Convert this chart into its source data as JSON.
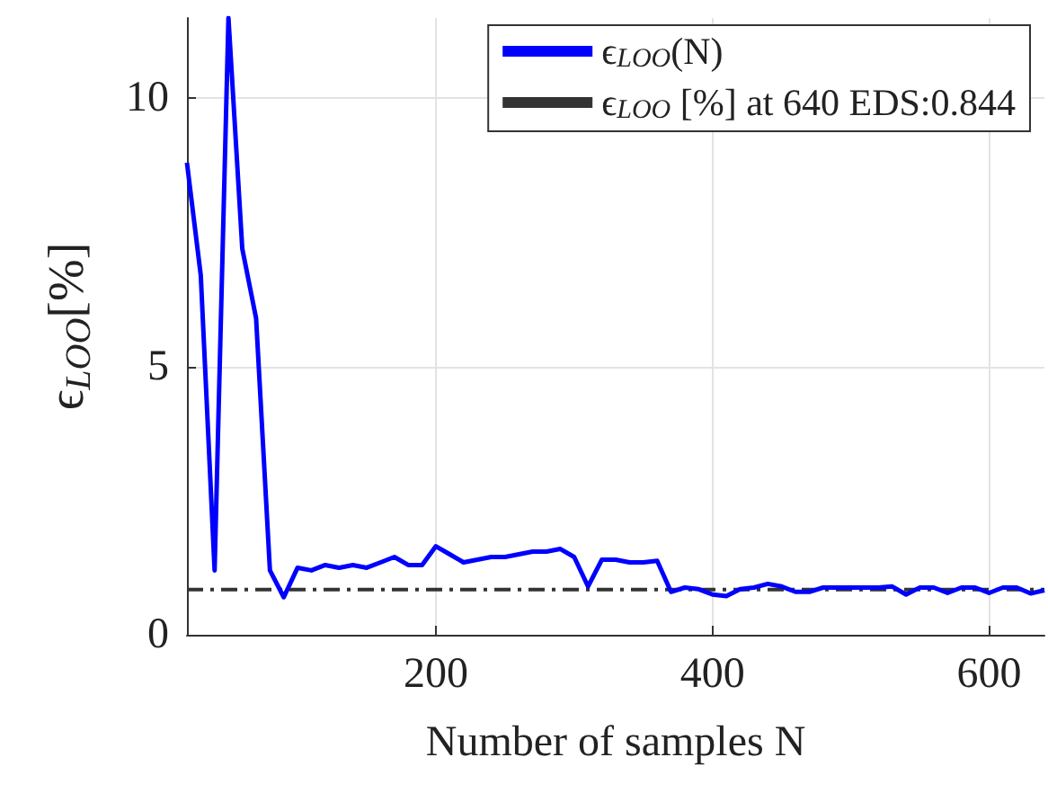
{
  "chart_data": {
    "type": "line",
    "xlabel": "Number of samples N",
    "ylabel": "ϵ$_{LOO}$[%]",
    "x": [
      20,
      30,
      40,
      50,
      60,
      70,
      80,
      90,
      100,
      110,
      120,
      130,
      140,
      150,
      160,
      170,
      180,
      190,
      200,
      210,
      220,
      230,
      240,
      250,
      260,
      270,
      280,
      290,
      300,
      310,
      320,
      330,
      340,
      350,
      360,
      370,
      380,
      390,
      400,
      410,
      420,
      430,
      440,
      450,
      460,
      470,
      480,
      490,
      500,
      510,
      520,
      530,
      540,
      550,
      560,
      570,
      580,
      590,
      600,
      610,
      620,
      630,
      640
    ],
    "series": [
      {
        "name": "ϵ$_{LOO}$(N)",
        "color": "#0000ff",
        "values": [
          8.8,
          6.7,
          1.2,
          11.5,
          7.2,
          5.9,
          1.2,
          0.7,
          1.25,
          1.2,
          1.3,
          1.25,
          1.3,
          1.25,
          1.35,
          1.45,
          1.3,
          1.3,
          1.65,
          1.5,
          1.35,
          1.4,
          1.45,
          1.45,
          1.5,
          1.55,
          1.55,
          1.6,
          1.45,
          0.9,
          1.4,
          1.4,
          1.35,
          1.35,
          1.38,
          0.8,
          0.88,
          0.85,
          0.75,
          0.72,
          0.85,
          0.88,
          0.95,
          0.9,
          0.8,
          0.8,
          0.88,
          0.88,
          0.88,
          0.88,
          0.88,
          0.9,
          0.75,
          0.88,
          0.88,
          0.78,
          0.88,
          0.88,
          0.78,
          0.88,
          0.88,
          0.77,
          0.83
        ]
      }
    ],
    "ref_lines": [
      {
        "axis": "y",
        "value": 0.844,
        "label": "ϵ$_{LOO}$ [%] at 640 EDS:0.844",
        "color": "#333333",
        "line_style": "dashdot"
      }
    ],
    "xlim": [
      20,
      640
    ],
    "xticks": [
      200,
      400,
      600
    ],
    "ylim": [
      0,
      11.5
    ],
    "yticks": [
      0,
      5,
      10
    ],
    "grid": true,
    "legend": "top right",
    "marker": "none",
    "line_style": "solid"
  }
}
